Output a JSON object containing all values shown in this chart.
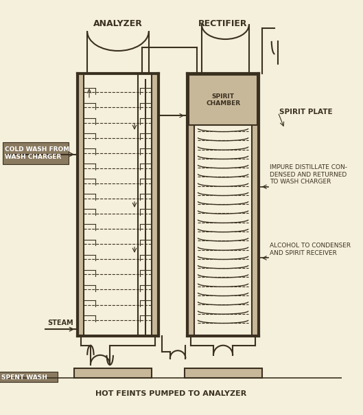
{
  "bg_color": "#f5f0dc",
  "line_color": "#3a3020",
  "fill_color": "#c8b89a",
  "dark_fill": "#8a7a60",
  "title_analyzer": "ANALYZER",
  "title_rectifier": "RECTIFIER",
  "label_cold_wash": "COLD WASH FROM\nWASH CHARGER",
  "label_spirit_chamber": "SPIRIT\nCHAMBER",
  "label_spirit_plate": "SPIRIT PLATE",
  "label_impure": "IMPURE DISTILLATE CON-\nDENSED AND RETURNED\nTO WASH CHARGER",
  "label_alcohol": "ALCOHOL TO CONDENSER\nAND SPIRIT RECEIVER",
  "label_steam": "STEAM",
  "label_spent_wash": "SPENT WASH",
  "label_hot_feints": "HOT FEINTS PUMPED TO ANALYZER",
  "lw": 1.5,
  "lw_thick": 3.0,
  "lw_thin": 1.0
}
